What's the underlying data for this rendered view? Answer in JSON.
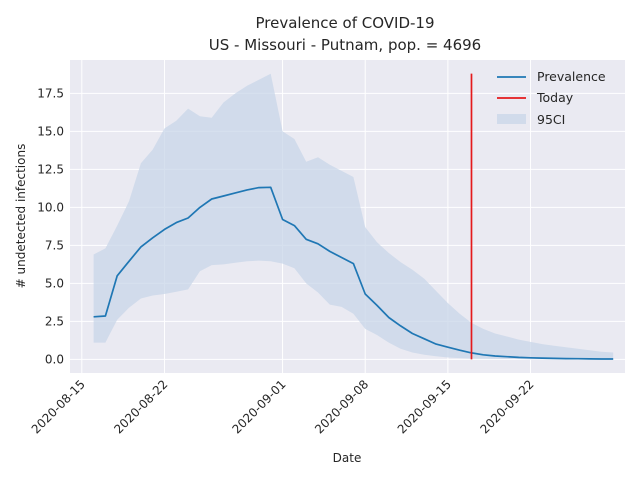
{
  "chart_data": {
    "type": "line",
    "title": "Prevalence of COVID-19",
    "subtitle": "US - Missouri - Putnam, pop. = 4696",
    "xlabel": "Date",
    "ylabel": "# undetected infections",
    "x_tick_labels": [
      "2020-08-15",
      "2020-08-22",
      "2020-09-01",
      "2020-09-08",
      "2020-09-15",
      "2020-09-22"
    ],
    "y_tick_labels": [
      "0.0",
      "2.5",
      "5.0",
      "7.5",
      "10.0",
      "12.5",
      "15.0",
      "17.5"
    ],
    "y_ticks": [
      0,
      2.5,
      5,
      7.5,
      10,
      12.5,
      15,
      17.5
    ],
    "x_ticks": [
      "2020-08-15",
      "2020-08-22",
      "2020-09-01",
      "2020-09-08",
      "2020-09-15",
      "2020-09-22"
    ],
    "xlim": [
      "2020-08-14",
      "2020-09-30"
    ],
    "ylim": [
      -0.9,
      19.7
    ],
    "grid": true,
    "legend_position": "top-right",
    "legend": {
      "prevalence": "Prevalence",
      "today": "Today",
      "ci": "95CI"
    },
    "colors": {
      "prevalence": "#1f77b4",
      "today": "#e41a1c",
      "ci_fill": "#c8d6e8",
      "plot_bg": "#eaeaf2",
      "grid": "#ffffff"
    },
    "today": "2020-09-17",
    "today_y_range": [
      0,
      18.8
    ],
    "series": [
      {
        "name": "Prevalence",
        "x": [
          "2020-08-16",
          "2020-08-17",
          "2020-08-18",
          "2020-08-19",
          "2020-08-20",
          "2020-08-21",
          "2020-08-22",
          "2020-08-23",
          "2020-08-24",
          "2020-08-25",
          "2020-08-26",
          "2020-08-27",
          "2020-08-28",
          "2020-08-29",
          "2020-08-30",
          "2020-08-31",
          "2020-09-01",
          "2020-09-02",
          "2020-09-03",
          "2020-09-04",
          "2020-09-05",
          "2020-09-06",
          "2020-09-07",
          "2020-09-08",
          "2020-09-09",
          "2020-09-10",
          "2020-09-11",
          "2020-09-12",
          "2020-09-13",
          "2020-09-14",
          "2020-09-15",
          "2020-09-16",
          "2020-09-17",
          "2020-09-18",
          "2020-09-19",
          "2020-09-20",
          "2020-09-21",
          "2020-09-22",
          "2020-09-23",
          "2020-09-24",
          "2020-09-25",
          "2020-09-26",
          "2020-09-27",
          "2020-09-28",
          "2020-09-29"
        ],
        "values": [
          2.8,
          2.85,
          5.5,
          6.45,
          7.4,
          8.0,
          8.55,
          9.0,
          9.3,
          10.0,
          10.55,
          10.75,
          10.95,
          11.15,
          11.3,
          11.32,
          9.2,
          8.8,
          7.9,
          7.6,
          7.1,
          6.7,
          6.3,
          4.3,
          3.55,
          2.75,
          2.2,
          1.7,
          1.35,
          1.0,
          0.8,
          0.6,
          0.42,
          0.3,
          0.22,
          0.17,
          0.13,
          0.1,
          0.08,
          0.06,
          0.05,
          0.04,
          0.03,
          0.02,
          0.02
        ]
      },
      {
        "name": "95CI",
        "x": [
          "2020-08-16",
          "2020-08-17",
          "2020-08-18",
          "2020-08-19",
          "2020-08-20",
          "2020-08-21",
          "2020-08-22",
          "2020-08-23",
          "2020-08-24",
          "2020-08-25",
          "2020-08-26",
          "2020-08-27",
          "2020-08-28",
          "2020-08-29",
          "2020-08-30",
          "2020-08-31",
          "2020-09-01",
          "2020-09-02",
          "2020-09-03",
          "2020-09-04",
          "2020-09-05",
          "2020-09-06",
          "2020-09-07",
          "2020-09-08",
          "2020-09-09",
          "2020-09-10",
          "2020-09-11",
          "2020-09-12",
          "2020-09-13",
          "2020-09-14",
          "2020-09-15",
          "2020-09-16",
          "2020-09-17",
          "2020-09-18",
          "2020-09-19",
          "2020-09-20",
          "2020-09-21",
          "2020-09-22",
          "2020-09-23",
          "2020-09-24",
          "2020-09-25",
          "2020-09-26",
          "2020-09-27",
          "2020-09-28",
          "2020-09-29"
        ],
        "lower": [
          1.1,
          1.1,
          2.6,
          3.4,
          4.0,
          4.2,
          4.3,
          4.45,
          4.6,
          5.8,
          6.2,
          6.25,
          6.35,
          6.45,
          6.5,
          6.45,
          6.3,
          6.0,
          5.0,
          4.4,
          3.6,
          3.45,
          3.0,
          2.0,
          1.6,
          1.1,
          0.7,
          0.45,
          0.3,
          0.2,
          0.12,
          0.08,
          0.05,
          0.04,
          0.03,
          0.02,
          0.02,
          0.01,
          0.01,
          0.01,
          0.0,
          0.0,
          0.0,
          0.0,
          0.0
        ],
        "upper": [
          6.9,
          7.3,
          8.8,
          10.4,
          12.9,
          13.8,
          15.2,
          15.7,
          16.5,
          16.0,
          15.9,
          16.9,
          17.5,
          18.0,
          18.4,
          18.8,
          15.0,
          14.5,
          13.0,
          13.3,
          12.8,
          12.4,
          12.0,
          8.7,
          7.7,
          7.0,
          6.4,
          5.9,
          5.3,
          4.5,
          3.7,
          3.0,
          2.4,
          2.0,
          1.7,
          1.5,
          1.3,
          1.15,
          1.0,
          0.9,
          0.8,
          0.7,
          0.6,
          0.5,
          0.45
        ]
      }
    ]
  }
}
